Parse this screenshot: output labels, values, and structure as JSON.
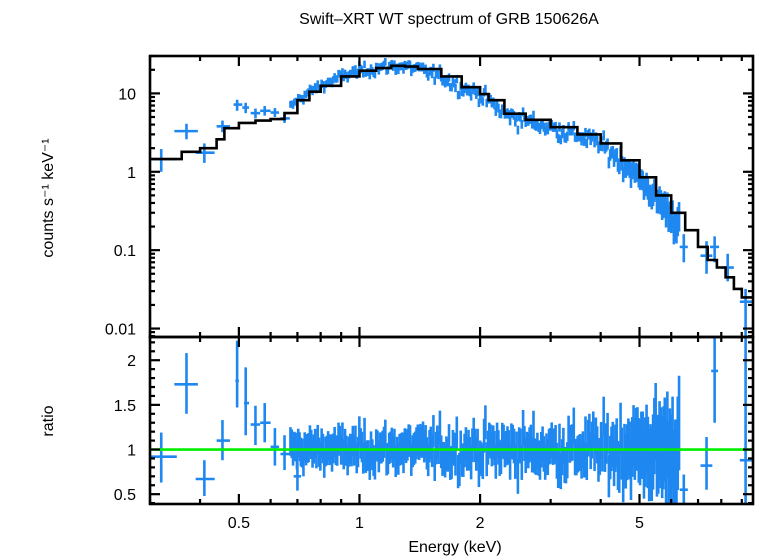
{
  "chart_data": [
    {
      "type": "scatter",
      "panel": "spectrum",
      "title": "Swift–XRT WT spectrum of GRB 150626A",
      "xlabel": "Energy (keV)",
      "ylabel": "counts s⁻¹ keV⁻¹",
      "xscale": "log",
      "yscale": "log",
      "xlim": [
        0.3,
        9.6
      ],
      "ylim": [
        0.0078,
        30
      ],
      "yticks": [
        0.01,
        0.1,
        1,
        10
      ],
      "ytick_labels": [
        "0.01",
        "0.1",
        "1",
        "10"
      ],
      "colors": {
        "data": "#1E88F0",
        "model": "#000000"
      },
      "model": {
        "name": "folded model (step)",
        "x": [
          0.3,
          0.36,
          0.4,
          0.44,
          0.46,
          0.5,
          0.55,
          0.6,
          0.65,
          0.7,
          0.75,
          0.8,
          0.9,
          1.0,
          1.1,
          1.2,
          1.3,
          1.4,
          1.6,
          1.8,
          2.0,
          2.1,
          2.3,
          2.6,
          3.0,
          3.5,
          4.0,
          4.5,
          5.0,
          5.5,
          6.0,
          6.5,
          7.0,
          7.4,
          7.8,
          8.2,
          8.6,
          9.0,
          9.6
        ],
        "y": [
          1.45,
          1.8,
          2.0,
          2.6,
          3.6,
          4.2,
          4.5,
          4.7,
          5.6,
          8.2,
          10.5,
          12.5,
          16.5,
          19.5,
          21.0,
          22.5,
          22.0,
          20.5,
          16.5,
          12.0,
          9.8,
          8.2,
          5.5,
          4.6,
          3.7,
          3.0,
          2.3,
          1.4,
          0.85,
          0.5,
          0.3,
          0.18,
          0.11,
          0.075,
          0.06,
          0.045,
          0.032,
          0.025,
          0.022
        ]
      },
      "data_points": {
        "low_energy": [
          {
            "x": 0.32,
            "xerr": [
              0.3,
              0.35
            ],
            "y": 1.45,
            "yerr": [
              1.0,
              1.95
            ]
          },
          {
            "x": 0.37,
            "xerr": [
              0.345,
              0.395
            ],
            "y": 3.3,
            "yerr": [
              2.6,
              4.1
            ]
          },
          {
            "x": 0.41,
            "xerr": [
              0.39,
              0.435
            ],
            "y": 1.75,
            "yerr": [
              1.3,
              2.3
            ]
          },
          {
            "x": 0.455,
            "xerr": [
              0.44,
              0.475
            ],
            "y": 3.8,
            "yerr": [
              3.2,
              4.5
            ]
          },
          {
            "x": 0.495,
            "xerr": [
              0.485,
              0.51
            ],
            "y": 7.2,
            "yerr": [
              6.0,
              8.3
            ]
          },
          {
            "x": 0.52,
            "xerr": [
              0.51,
              0.53
            ],
            "y": 6.6,
            "yerr": [
              5.6,
              7.6
            ]
          },
          {
            "x": 0.55,
            "xerr": [
              0.535,
              0.565
            ],
            "y": 5.6,
            "yerr": [
              4.8,
              6.4
            ]
          },
          {
            "x": 0.58,
            "xerr": [
              0.565,
              0.6
            ],
            "y": 6.0,
            "yerr": [
              5.2,
              6.9
            ]
          },
          {
            "x": 0.615,
            "xerr": [
              0.6,
              0.63
            ],
            "y": 5.7,
            "yerr": [
              5.0,
              6.5
            ]
          },
          {
            "x": 0.65,
            "xerr": [
              0.635,
              0.67
            ],
            "y": 4.8,
            "yerr": [
              4.2,
              5.5
            ]
          }
        ],
        "high_energy": [
          {
            "x": 6.45,
            "xerr": [
              6.3,
              6.6
            ],
            "y": 0.11,
            "yerr": [
              0.07,
              0.16
            ]
          },
          {
            "x": 7.35,
            "xerr": [
              7.1,
              7.6
            ],
            "y": 0.085,
            "yerr": [
              0.05,
              0.13
            ]
          },
          {
            "x": 7.7,
            "xerr": [
              7.5,
              7.9
            ],
            "y": 0.11,
            "yerr": [
              0.07,
              0.15
            ]
          },
          {
            "x": 8.3,
            "xerr": [
              8.0,
              8.6
            ],
            "y": 0.06,
            "yerr": [
              0.04,
              0.09
            ]
          },
          {
            "x": 9.2,
            "xerr": [
              8.9,
              9.6
            ],
            "y": 0.022,
            "yerr": [
              0.0078,
              0.032
            ]
          }
        ],
        "dense_range_keV": [
          0.67,
          6.3
        ],
        "dense_point_count": 300,
        "dense_scatter_dex": 0.09
      }
    },
    {
      "type": "scatter",
      "panel": "ratio",
      "xlabel": "Energy (keV)",
      "ylabel": "ratio",
      "xscale": "log",
      "xlim": [
        0.3,
        9.6
      ],
      "ylim": [
        0.39,
        2.26
      ],
      "yticks": [
        0.5,
        1,
        1.5,
        2
      ],
      "ytick_labels": [
        "0.5",
        "1",
        "1.5",
        "2"
      ],
      "xticks": [
        0.5,
        1,
        2,
        5
      ],
      "xtick_labels": [
        "0.5",
        "1",
        "2",
        "5"
      ],
      "reference_line": {
        "y": 1,
        "color": "#00EE00"
      },
      "colors": {
        "data": "#1E88F0"
      },
      "data_points": {
        "low_energy": [
          {
            "x": 0.32,
            "xerr": [
              0.3,
              0.35
            ],
            "y": 0.92,
            "yerr": [
              0.63,
              1.19
            ]
          },
          {
            "x": 0.37,
            "xerr": [
              0.345,
              0.395
            ],
            "y": 1.73,
            "yerr": [
              1.4,
              2.08
            ]
          },
          {
            "x": 0.41,
            "xerr": [
              0.39,
              0.435
            ],
            "y": 0.67,
            "yerr": [
              0.48,
              0.88
            ]
          },
          {
            "x": 0.455,
            "xerr": [
              0.44,
              0.475
            ],
            "y": 1.1,
            "yerr": [
              0.88,
              1.33
            ]
          },
          {
            "x": 0.495,
            "xerr": [
              0.49,
              0.5
            ],
            "y": 1.77,
            "yerr": [
              1.47,
              2.22
            ]
          },
          {
            "x": 0.52,
            "xerr": [
              0.515,
              0.53
            ],
            "y": 1.52,
            "yerr": [
              1.16,
              1.92
            ]
          },
          {
            "x": 0.55,
            "xerr": [
              0.535,
              0.565
            ],
            "y": 1.28,
            "yerr": [
              1.05,
              1.49
            ]
          },
          {
            "x": 0.58,
            "xerr": [
              0.565,
              0.6
            ],
            "y": 1.3,
            "yerr": [
              1.08,
              1.52
            ]
          },
          {
            "x": 0.615,
            "xerr": [
              0.6,
              0.63
            ],
            "y": 1.03,
            "yerr": [
              0.82,
              1.24
            ]
          },
          {
            "x": 0.65,
            "xerr": [
              0.635,
              0.67
            ],
            "y": 0.95,
            "yerr": [
              0.77,
              1.16
            ]
          },
          {
            "x": 0.7,
            "xerr": [
              0.685,
              0.715
            ],
            "y": 0.7,
            "yerr": [
              0.54,
              0.87
            ]
          }
        ],
        "high_energy": [
          {
            "x": 6.45,
            "xerr": [
              6.3,
              6.6
            ],
            "y": 0.55,
            "yerr": [
              0.39,
              0.72
            ]
          },
          {
            "x": 7.35,
            "xerr": [
              7.1,
              7.6
            ],
            "y": 0.82,
            "yerr": [
              0.55,
              1.14
            ]
          },
          {
            "x": 7.7,
            "xerr": [
              7.55,
              7.85
            ],
            "y": 1.88,
            "yerr": [
              1.3,
              2.26
            ]
          },
          {
            "x": 9.2,
            "xerr": [
              8.9,
              9.6
            ],
            "y": 0.88,
            "yerr": [
              0.39,
              2.26
            ]
          }
        ],
        "dense_range_keV": [
          0.72,
          6.3
        ],
        "dense_point_count": 300,
        "dense_scatter": 0.12
      }
    }
  ]
}
